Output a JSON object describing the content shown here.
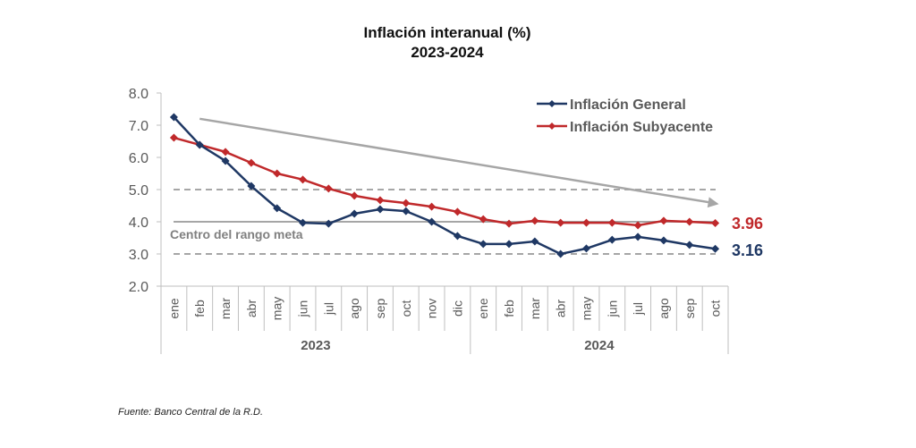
{
  "chart_data": {
    "type": "line",
    "title": "Inflación interanual (%)",
    "subtitle": "2023-2024",
    "xlabel": "",
    "ylabel": "",
    "ylim": [
      2.0,
      8.0
    ],
    "yticks": [
      "2.0",
      "3.0",
      "4.0",
      "5.0",
      "6.0",
      "7.0",
      "8.0"
    ],
    "grid": false,
    "legend_position": "top-right",
    "categories": [
      "ene",
      "feb",
      "mar",
      "abr",
      "may",
      "jun",
      "jul",
      "ago",
      "sep",
      "oct",
      "nov",
      "dic",
      "ene",
      "feb",
      "mar",
      "abr",
      "may",
      "jun",
      "jul",
      "ago",
      "sep",
      "oct"
    ],
    "year_groups": [
      {
        "label": "2023",
        "count": 12
      },
      {
        "label": "2024",
        "count": 10
      }
    ],
    "series": [
      {
        "name": "Inflación General",
        "color": "#1f3864",
        "values": [
          7.25,
          6.39,
          5.89,
          5.11,
          4.42,
          3.97,
          3.94,
          4.25,
          4.39,
          4.33,
          4.0,
          3.56,
          3.31,
          3.31,
          3.39,
          3.0,
          3.17,
          3.44,
          3.53,
          3.42,
          3.28,
          3.16
        ],
        "end_label": "3.16"
      },
      {
        "name": "Inflación Subyacente",
        "color": "#c0292b",
        "values": [
          6.61,
          6.39,
          6.17,
          5.83,
          5.5,
          5.31,
          5.03,
          4.81,
          4.67,
          4.58,
          4.47,
          4.31,
          4.08,
          3.94,
          4.03,
          3.97,
          3.97,
          3.97,
          3.89,
          4.03,
          4.0,
          3.96
        ],
        "end_label": "3.96"
      }
    ],
    "reference_lines": [
      {
        "value": 5.0,
        "style": "dashed",
        "color": "#a6a6a6"
      },
      {
        "value": 4.0,
        "style": "solid",
        "color": "#a6a6a6",
        "label": "Centro del rango meta"
      },
      {
        "value": 3.0,
        "style": "dashed",
        "color": "#a6a6a6"
      }
    ],
    "trend_arrow": {
      "from": {
        "index": 1,
        "value": 7.2
      },
      "to": {
        "index": 21,
        "value": 4.55
      },
      "color": "#a6a6a6"
    },
    "source": "Fuente: Banco Central de la R.D."
  }
}
